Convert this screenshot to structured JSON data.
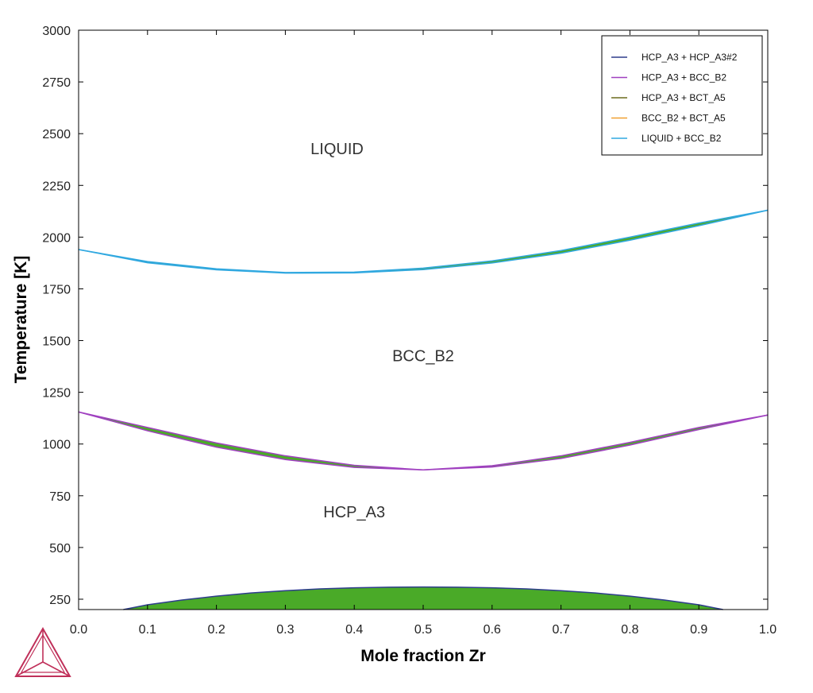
{
  "chart_data": {
    "type": "line",
    "xlabel": "Mole fraction Zr",
    "ylabel": "Temperature [K]",
    "xlim": [
      0,
      1
    ],
    "ylim": [
      200,
      3000
    ],
    "xticks": [
      "0.0",
      "0.1",
      "0.2",
      "0.3",
      "0.4",
      "0.5",
      "0.6",
      "0.7",
      "0.8",
      "0.9",
      "1.0"
    ],
    "yticks": [
      "250",
      "500",
      "750",
      "1000",
      "1250",
      "1500",
      "1750",
      "2000",
      "2250",
      "2500",
      "2750",
      "3000"
    ],
    "grid": false,
    "legend_position": "top-right",
    "region_labels": [
      {
        "text": "LIQUID",
        "x": 0.375,
        "y": 2400
      },
      {
        "text": "BCC_B2",
        "x": 0.5,
        "y": 1400
      },
      {
        "text": "HCP_A3",
        "x": 0.4,
        "y": 645
      }
    ],
    "series": [
      {
        "name": "HCP_A3 + HCP_A3#2",
        "color": "#2e3d8c",
        "x": [
          0.065,
          0.1,
          0.15,
          0.2,
          0.25,
          0.3,
          0.35,
          0.4,
          0.45,
          0.5,
          0.55,
          0.6,
          0.65,
          0.7,
          0.75,
          0.8,
          0.85,
          0.9,
          0.935
        ],
        "y": [
          200,
          223,
          246,
          265,
          280,
          291,
          300,
          305,
          308,
          309,
          308,
          305,
          300,
          291,
          280,
          265,
          246,
          223,
          200
        ],
        "fill": "#4aaa28"
      },
      {
        "name": "HCP_A3 + BCC_B2",
        "color": "#a040c0",
        "x": [
          0,
          0.1,
          0.2,
          0.3,
          0.4,
          0.5,
          0.6,
          0.7,
          0.8,
          0.9,
          1.0
        ],
        "y": [
          1155,
          1064,
          985,
          925,
          887,
          875,
          889,
          930,
          995,
          1070,
          1140
        ],
        "y2": [
          1155,
          1080,
          1005,
          943,
          897,
          875,
          895,
          943,
          1008,
          1080,
          1140
        ],
        "fill": "#4aaa28"
      },
      {
        "name": "HCP_A3 + BCT_A5",
        "color": "#6b6b1e",
        "x": [],
        "y": []
      },
      {
        "name": "BCC_B2 + BCT_A5",
        "color": "#f0a030",
        "x": [],
        "y": []
      },
      {
        "name": "LIQUID + BCC_B2",
        "color": "#30a8e0",
        "x": [
          0,
          0.1,
          0.2,
          0.3,
          0.4,
          0.5,
          0.6,
          0.7,
          0.8,
          0.9,
          1.0
        ],
        "y": [
          1940,
          1876,
          1842,
          1826,
          1827,
          1843,
          1875,
          1922,
          1985,
          2055,
          2130
        ],
        "y2": [
          1940,
          1882,
          1847,
          1829,
          1831,
          1850,
          1885,
          1935,
          2000,
          2068,
          2130
        ],
        "fill": "#4aaa28"
      }
    ]
  },
  "logo": {
    "name": "thermo-calc-logo",
    "color": "#c0305a"
  }
}
